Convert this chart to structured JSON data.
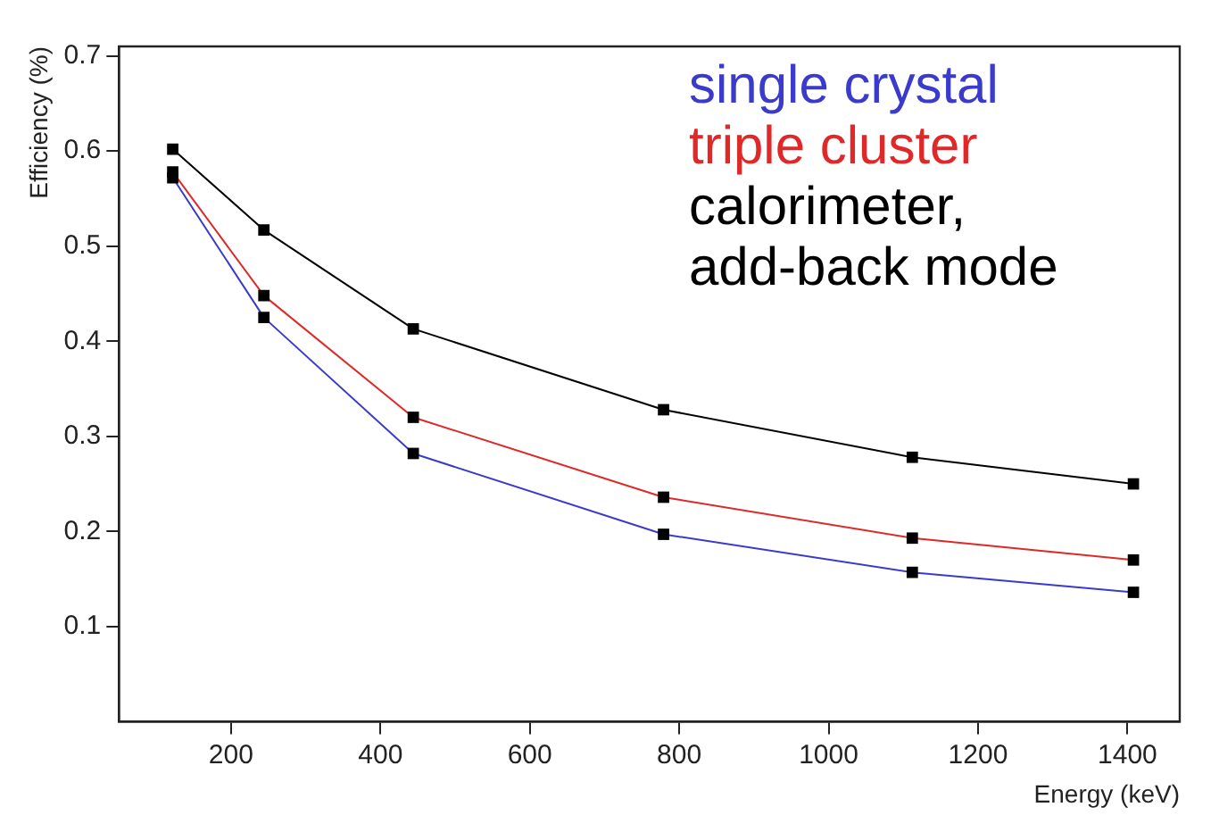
{
  "chart_data": {
    "type": "line",
    "xlabel": "Energy (keV)",
    "ylabel": "Efficiency (%)",
    "x": [
      122,
      244,
      444,
      779,
      1112,
      1408
    ],
    "series": [
      {
        "name": "single crystal",
        "color": "#3a3acc",
        "values": [
          0.572,
          0.425,
          0.282,
          0.197,
          0.157,
          0.136
        ]
      },
      {
        "name": "triple cluster",
        "color": "#e02828",
        "values": [
          0.578,
          0.448,
          0.32,
          0.236,
          0.193,
          0.17
        ]
      },
      {
        "name": "calorimeter, add-back mode",
        "color": "#000000",
        "values": [
          0.602,
          0.517,
          0.413,
          0.328,
          0.278,
          0.25
        ]
      }
    ],
    "xlim": [
      50,
      1470
    ],
    "xticks": [
      200,
      400,
      600,
      800,
      1000,
      1200,
      1400
    ],
    "ylim": [
      0,
      0.71
    ],
    "yticks": [
      0.1,
      0.2,
      0.3,
      0.4,
      0.5,
      0.6,
      0.7
    ],
    "grid": false,
    "legend": "top right",
    "marker": "square",
    "line_style": "solid"
  }
}
